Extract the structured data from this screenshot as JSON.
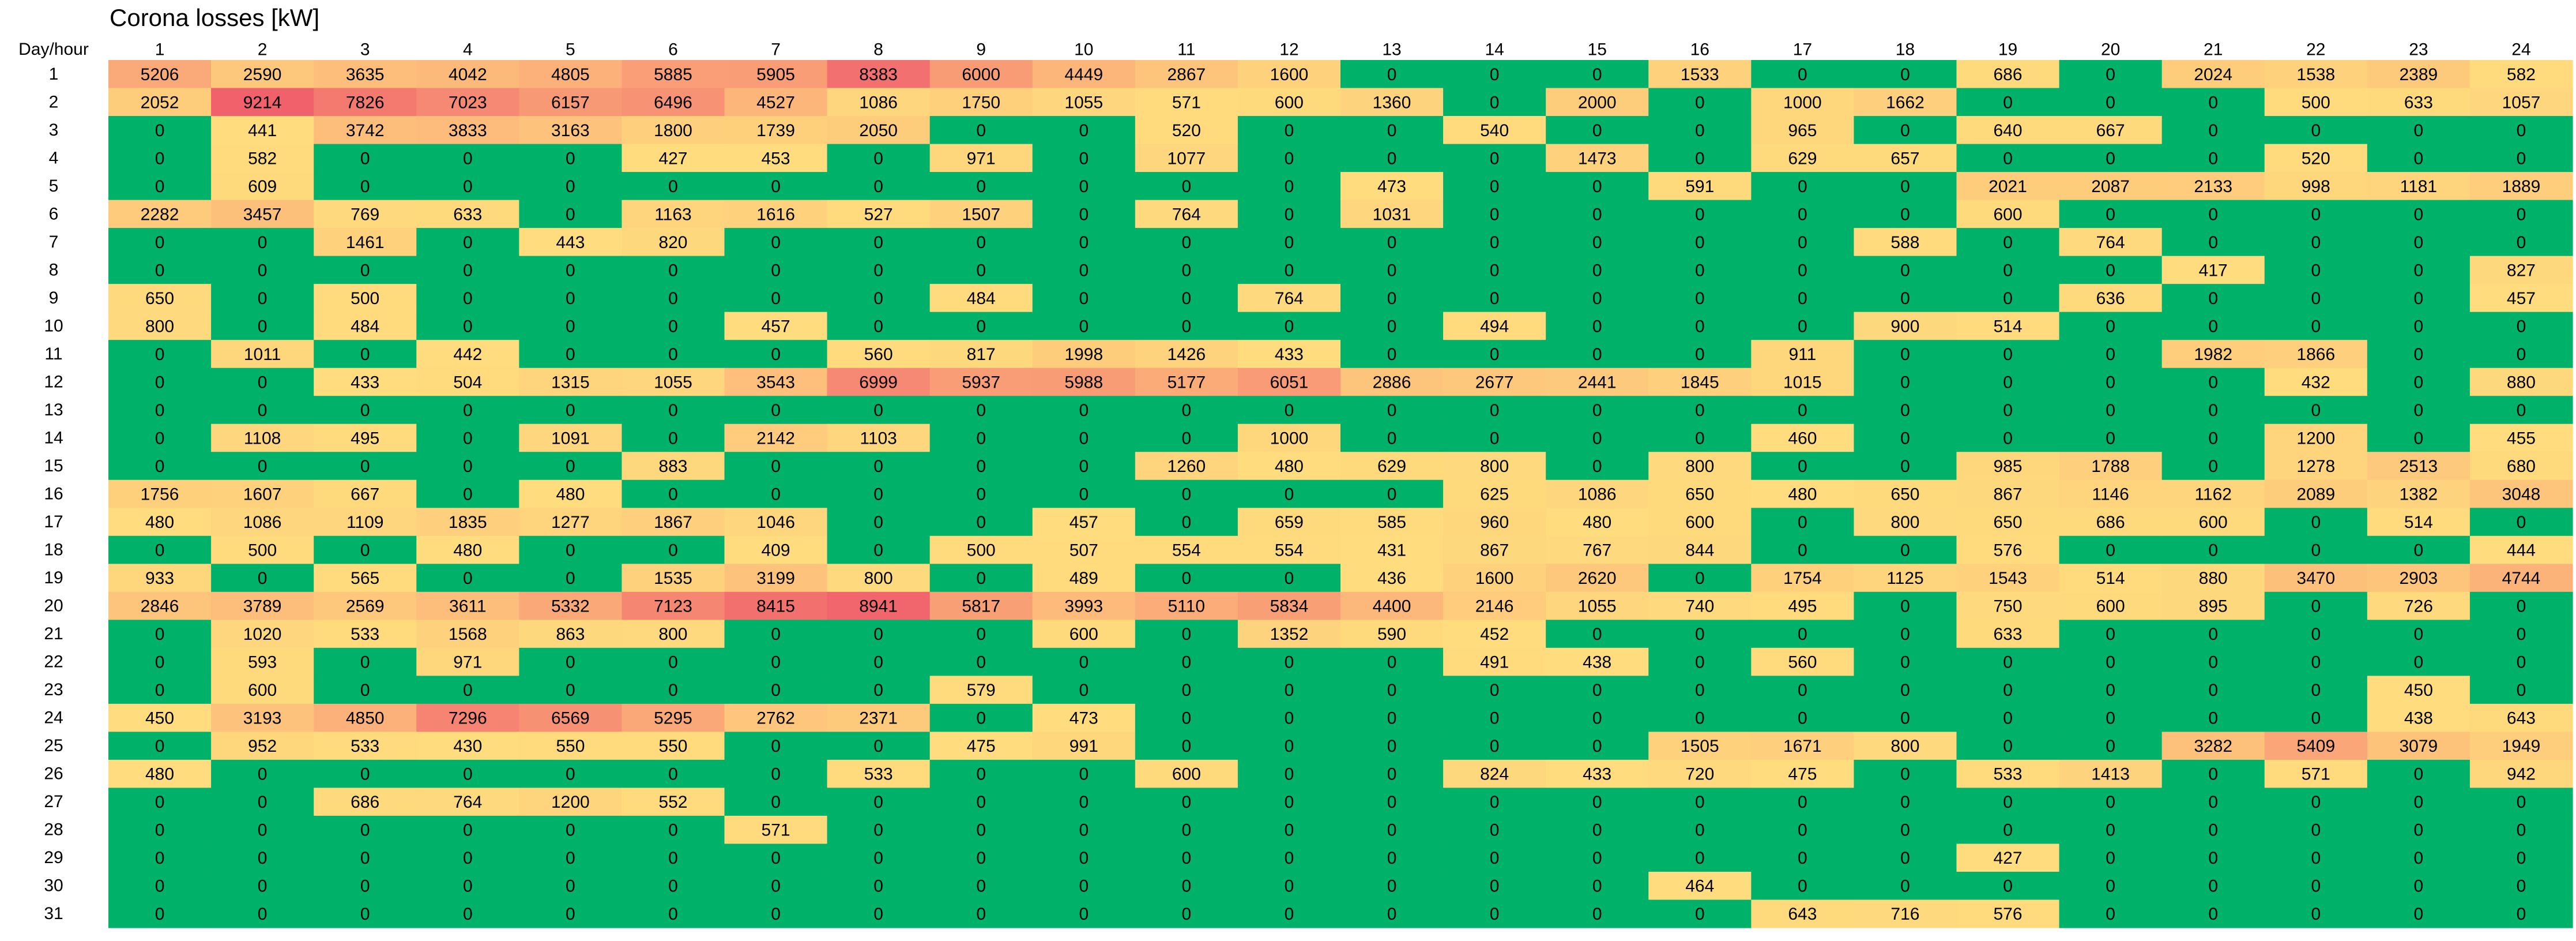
{
  "chart_data": {
    "type": "heatmap",
    "title": "Corona losses [kW]",
    "corner_label": "Day/hour",
    "x_label": "hour",
    "y_label": "Day",
    "columns": [
      "1",
      "2",
      "3",
      "4",
      "5",
      "6",
      "7",
      "8",
      "9",
      "10",
      "11",
      "12",
      "13",
      "14",
      "15",
      "16",
      "17",
      "18",
      "19",
      "20",
      "21",
      "22",
      "23",
      "24"
    ],
    "rows": [
      "1",
      "2",
      "3",
      "4",
      "5",
      "6",
      "7",
      "8",
      "9",
      "10",
      "11",
      "12",
      "13",
      "14",
      "15",
      "16",
      "17",
      "18",
      "19",
      "20",
      "21",
      "22",
      "23",
      "24",
      "25",
      "26",
      "27",
      "28",
      "29",
      "30",
      "31"
    ],
    "values": [
      [
        5206,
        2590,
        3635,
        4042,
        4805,
        5885,
        5905,
        8383,
        6000,
        4449,
        2867,
        1600,
        0,
        0,
        0,
        1533,
        0,
        0,
        686,
        0,
        2024,
        1538,
        2389,
        582
      ],
      [
        2052,
        9214,
        7826,
        7023,
        6157,
        6496,
        4527,
        1086,
        1750,
        1055,
        571,
        600,
        1360,
        0,
        2000,
        0,
        1000,
        1662,
        0,
        0,
        0,
        500,
        633,
        1057
      ],
      [
        0,
        441,
        3742,
        3833,
        3163,
        1800,
        1739,
        2050,
        0,
        0,
        520,
        0,
        0,
        540,
        0,
        0,
        965,
        0,
        640,
        667,
        0,
        0,
        0,
        0
      ],
      [
        0,
        582,
        0,
        0,
        0,
        427,
        453,
        0,
        971,
        0,
        1077,
        0,
        0,
        0,
        1473,
        0,
        629,
        657,
        0,
        0,
        0,
        520,
        0,
        0
      ],
      [
        0,
        609,
        0,
        0,
        0,
        0,
        0,
        0,
        0,
        0,
        0,
        0,
        473,
        0,
        0,
        591,
        0,
        0,
        2021,
        2087,
        2133,
        998,
        1181,
        1889
      ],
      [
        2282,
        3457,
        769,
        633,
        0,
        1163,
        1616,
        527,
        1507,
        0,
        764,
        0,
        1031,
        0,
        0,
        0,
        0,
        0,
        600,
        0,
        0,
        0,
        0,
        0
      ],
      [
        0,
        0,
        1461,
        0,
        443,
        820,
        0,
        0,
        0,
        0,
        0,
        0,
        0,
        0,
        0,
        0,
        0,
        588,
        0,
        764,
        0,
        0,
        0,
        0
      ],
      [
        0,
        0,
        0,
        0,
        0,
        0,
        0,
        0,
        0,
        0,
        0,
        0,
        0,
        0,
        0,
        0,
        0,
        0,
        0,
        0,
        417,
        0,
        0,
        827
      ],
      [
        650,
        0,
        500,
        0,
        0,
        0,
        0,
        0,
        484,
        0,
        0,
        764,
        0,
        0,
        0,
        0,
        0,
        0,
        0,
        636,
        0,
        0,
        0,
        457
      ],
      [
        800,
        0,
        484,
        0,
        0,
        0,
        457,
        0,
        0,
        0,
        0,
        0,
        0,
        494,
        0,
        0,
        0,
        900,
        514,
        0,
        0,
        0,
        0,
        0
      ],
      [
        0,
        1011,
        0,
        442,
        0,
        0,
        0,
        560,
        817,
        1998,
        1426,
        433,
        0,
        0,
        0,
        0,
        911,
        0,
        0,
        0,
        1982,
        1866,
        0,
        0
      ],
      [
        0,
        0,
        433,
        504,
        1315,
        1055,
        3543,
        6999,
        5937,
        5988,
        5177,
        6051,
        2886,
        2677,
        2441,
        1845,
        1015,
        0,
        0,
        0,
        0,
        432,
        0,
        880
      ],
      [
        0,
        0,
        0,
        0,
        0,
        0,
        0,
        0,
        0,
        0,
        0,
        0,
        0,
        0,
        0,
        0,
        0,
        0,
        0,
        0,
        0,
        0,
        0,
        0
      ],
      [
        0,
        1108,
        495,
        0,
        1091,
        0,
        2142,
        1103,
        0,
        0,
        0,
        1000,
        0,
        0,
        0,
        0,
        460,
        0,
        0,
        0,
        0,
        1200,
        0,
        455
      ],
      [
        0,
        0,
        0,
        0,
        0,
        883,
        0,
        0,
        0,
        0,
        1260,
        480,
        629,
        800,
        0,
        800,
        0,
        0,
        985,
        1788,
        0,
        1278,
        2513,
        680
      ],
      [
        1756,
        1607,
        667,
        0,
        480,
        0,
        0,
        0,
        0,
        0,
        0,
        0,
        0,
        625,
        1086,
        650,
        480,
        650,
        867,
        1146,
        1162,
        2089,
        1382,
        3048
      ],
      [
        480,
        1086,
        1109,
        1835,
        1277,
        1867,
        1046,
        0,
        0,
        457,
        0,
        659,
        585,
        960,
        480,
        600,
        0,
        800,
        650,
        686,
        600,
        0,
        514,
        0
      ],
      [
        0,
        500,
        0,
        480,
        0,
        0,
        409,
        0,
        500,
        507,
        554,
        554,
        431,
        867,
        767,
        844,
        0,
        0,
        576,
        0,
        0,
        0,
        0,
        444
      ],
      [
        933,
        0,
        565,
        0,
        0,
        1535,
        3199,
        800,
        0,
        489,
        0,
        0,
        436,
        1600,
        2620,
        0,
        1754,
        1125,
        1543,
        514,
        880,
        3470,
        2903,
        4744
      ],
      [
        2846,
        3789,
        2569,
        3611,
        5332,
        7123,
        8415,
        8941,
        5817,
        3993,
        5110,
        5834,
        4400,
        2146,
        1055,
        740,
        495,
        0,
        750,
        600,
        895,
        0,
        726,
        0
      ],
      [
        0,
        1020,
        533,
        1568,
        863,
        800,
        0,
        0,
        0,
        600,
        0,
        1352,
        590,
        452,
        0,
        0,
        0,
        0,
        633,
        0,
        0,
        0,
        0,
        0
      ],
      [
        0,
        593,
        0,
        971,
        0,
        0,
        0,
        0,
        0,
        0,
        0,
        0,
        0,
        491,
        438,
        0,
        560,
        0,
        0,
        0,
        0,
        0,
        0,
        0
      ],
      [
        0,
        600,
        0,
        0,
        0,
        0,
        0,
        0,
        579,
        0,
        0,
        0,
        0,
        0,
        0,
        0,
        0,
        0,
        0,
        0,
        0,
        0,
        450,
        0
      ],
      [
        450,
        3193,
        4850,
        7296,
        6569,
        5295,
        2762,
        2371,
        0,
        473,
        0,
        0,
        0,
        0,
        0,
        0,
        0,
        0,
        0,
        0,
        0,
        0,
        438,
        643
      ],
      [
        0,
        952,
        533,
        430,
        550,
        550,
        0,
        0,
        475,
        991,
        0,
        0,
        0,
        0,
        0,
        1505,
        1671,
        800,
        0,
        0,
        3282,
        5409,
        3079,
        1949
      ],
      [
        480,
        0,
        0,
        0,
        0,
        0,
        0,
        533,
        0,
        0,
        600,
        0,
        0,
        824,
        433,
        720,
        475,
        0,
        533,
        1413,
        0,
        571,
        0,
        942
      ],
      [
        0,
        0,
        686,
        764,
        1200,
        552,
        0,
        0,
        0,
        0,
        0,
        0,
        0,
        0,
        0,
        0,
        0,
        0,
        0,
        0,
        0,
        0,
        0,
        0
      ],
      [
        0,
        0,
        0,
        0,
        0,
        0,
        571,
        0,
        0,
        0,
        0,
        0,
        0,
        0,
        0,
        0,
        0,
        0,
        0,
        0,
        0,
        0,
        0,
        0
      ],
      [
        0,
        0,
        0,
        0,
        0,
        0,
        0,
        0,
        0,
        0,
        0,
        0,
        0,
        0,
        0,
        0,
        0,
        0,
        427,
        0,
        0,
        0,
        0,
        0
      ],
      [
        0,
        0,
        0,
        0,
        0,
        0,
        0,
        0,
        0,
        0,
        0,
        0,
        0,
        0,
        0,
        464,
        0,
        0,
        0,
        0,
        0,
        0,
        0,
        0
      ],
      [
        0,
        0,
        0,
        0,
        0,
        0,
        0,
        0,
        0,
        0,
        0,
        0,
        0,
        0,
        0,
        0,
        643,
        716,
        576,
        0,
        0,
        0,
        0,
        0
      ]
    ],
    "color_scale": {
      "zero": "#00b16a",
      "low": "#ffe07e",
      "mid": "#fcb57a",
      "high": "#f0616c",
      "max_value": 9214
    }
  }
}
